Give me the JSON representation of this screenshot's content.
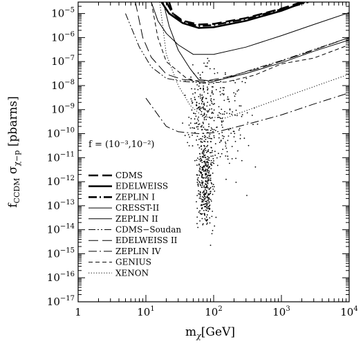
{
  "chart_data": {
    "type": "line",
    "xlabel": "m",
    "xlabel_sub": "χ",
    "xlabel_unit": "[GeV]",
    "ylabel": "f",
    "ylabel_sub": "CCDM",
    "ylabel_sigma": "σ",
    "ylabel_sigma_sub": "χ−p",
    "ylabel_unit": "[pbarns]",
    "annotation": "f = (10⁻³,10⁻²)",
    "x_scale": "log",
    "y_scale": "log",
    "xlim": [
      1,
      10000
    ],
    "ylim": [
      1e-17,
      3e-05
    ],
    "x_ticks": [
      {
        "base": "1",
        "exp": ""
      },
      {
        "base": "10",
        "exp": "1"
      },
      {
        "base": "10",
        "exp": "2"
      },
      {
        "base": "10",
        "exp": "3"
      },
      {
        "base": "10",
        "exp": "4"
      }
    ],
    "y_ticks": [
      {
        "v": 1e-05,
        "exp": "−5"
      },
      {
        "v": 1e-06,
        "exp": "−6"
      },
      {
        "v": 1e-07,
        "exp": "−7"
      },
      {
        "v": 1e-08,
        "exp": "−8"
      },
      {
        "v": 1e-09,
        "exp": "−9"
      },
      {
        "v": 1e-10,
        "exp": "−10"
      },
      {
        "v": 1e-11,
        "exp": "−11"
      },
      {
        "v": 1e-12,
        "exp": "−12"
      },
      {
        "v": 1e-13,
        "exp": "−13"
      },
      {
        "v": 1e-14,
        "exp": "−14"
      },
      {
        "v": 1e-15,
        "exp": "−15"
      },
      {
        "v": 1e-16,
        "exp": "−16"
      },
      {
        "v": 1e-17,
        "exp": "−17"
      }
    ],
    "legend_position": "bottom-left",
    "series": [
      {
        "name": "CDMS",
        "style": "longdash",
        "width": 3,
        "points": [
          [
            20,
            3e-05
          ],
          [
            25,
            1e-05
          ],
          [
            35,
            5e-06
          ],
          [
            60,
            3.5e-06
          ],
          [
            100,
            3.7e-06
          ],
          [
            300,
            6.5e-06
          ],
          [
            1000,
            1.6e-05
          ],
          [
            2000,
            3e-05
          ]
        ]
      },
      {
        "name": "EDELWEISS",
        "style": "solid",
        "width": 3,
        "points": [
          [
            17,
            3e-05
          ],
          [
            22,
            1e-05
          ],
          [
            35,
            4e-06
          ],
          [
            60,
            2.5e-06
          ],
          [
            100,
            2.7e-06
          ],
          [
            300,
            5e-06
          ],
          [
            1000,
            1.3e-05
          ],
          [
            2200,
            3e-05
          ]
        ]
      },
      {
        "name": "ZEPLIN I",
        "style": "dashdot",
        "width": 3,
        "points": [
          [
            22,
            3e-05
          ],
          [
            25,
            1e-05
          ],
          [
            35,
            4.5e-06
          ],
          [
            60,
            3e-06
          ],
          [
            100,
            3.3e-06
          ],
          [
            300,
            6e-06
          ],
          [
            1000,
            1.5e-05
          ],
          [
            2500,
            3e-05
          ]
        ]
      },
      {
        "name": "CRESST-II",
        "style": "solid",
        "width": 1,
        "points": [
          [
            12,
            3e-05
          ],
          [
            15,
            5e-06
          ],
          [
            20,
            1.5e-06
          ],
          [
            30,
            5e-07
          ],
          [
            50,
            2e-07
          ],
          [
            100,
            2e-07
          ],
          [
            300,
            4e-07
          ],
          [
            1000,
            1.2e-06
          ],
          [
            3000,
            3.5e-06
          ],
          [
            10000,
            1.1e-05
          ]
        ]
      },
      {
        "name": "ZEPLIN II",
        "style": "solid",
        "width": 1,
        "points": [
          [
            18,
            3e-05
          ],
          [
            22,
            3e-06
          ],
          [
            30,
            3e-07
          ],
          [
            45,
            5e-08
          ],
          [
            60,
            1.8e-08
          ],
          [
            100,
            1.5e-08
          ],
          [
            300,
            3.2e-08
          ],
          [
            1000,
            9e-08
          ],
          [
            3000,
            2.7e-07
          ],
          [
            10000,
            8e-07
          ]
        ]
      },
      {
        "name": "CDMS−Soudan",
        "style": "dashdotdot",
        "width": 1,
        "points": [
          [
            5,
            1e-05
          ],
          [
            8,
            4e-07
          ],
          [
            12,
            6e-08
          ],
          [
            20,
            2e-08
          ],
          [
            35,
            1.5e-08
          ],
          [
            70,
            1.3e-08
          ],
          [
            150,
            2e-08
          ],
          [
            400,
            5e-08
          ],
          [
            1000,
            1.1e-07
          ],
          [
            10000,
            1e-06
          ]
        ]
      },
      {
        "name": "EDELWEISS II",
        "style": "longdash",
        "width": 1,
        "points": [
          [
            7,
            3e-05
          ],
          [
            9,
            1e-06
          ],
          [
            12,
            1.5e-07
          ],
          [
            20,
            3e-08
          ],
          [
            35,
            1.8e-08
          ],
          [
            70,
            1.5e-08
          ],
          [
            150,
            2.2e-08
          ],
          [
            500,
            5.5e-08
          ],
          [
            2000,
            2e-07
          ],
          [
            10000,
            1e-06
          ]
        ]
      },
      {
        "name": "ZEPLIN IV",
        "style": "dashdot",
        "width": 1,
        "points": [
          [
            10,
            3e-09
          ],
          [
            20,
            2e-10
          ],
          [
            30,
            1.2e-10
          ],
          [
            60,
            1e-10
          ],
          [
            100,
            1.1e-10
          ],
          [
            300,
            2.4e-10
          ],
          [
            1000,
            6e-10
          ],
          [
            3000,
            1.7e-09
          ],
          [
            10000,
            5e-09
          ]
        ]
      },
      {
        "name": "GENIUS",
        "style": "shortdash",
        "width": 1,
        "points": [
          [
            12,
            3e-05
          ],
          [
            15,
            1e-06
          ],
          [
            20,
            1e-07
          ],
          [
            40,
            2e-08
          ],
          [
            70,
            1.3e-08
          ],
          [
            150,
            1.4e-08
          ],
          [
            400,
            2.7e-08
          ],
          [
            1000,
            8e-08
          ],
          [
            3000,
            1.4e-07
          ],
          [
            10000,
            5e-07
          ]
        ]
      },
      {
        "name": "XENON",
        "style": "dotted",
        "width": 1,
        "points": [
          [
            16,
            3e-05
          ],
          [
            20,
            2e-07
          ],
          [
            30,
            1e-08
          ],
          [
            45,
            1.5e-09
          ],
          [
            70,
            5e-10
          ],
          [
            150,
            4.5e-10
          ],
          [
            400,
            1.2e-09
          ],
          [
            1000,
            3e-09
          ],
          [
            3000,
            9e-09
          ],
          [
            10000,
            3e-08
          ]
        ]
      }
    ]
  }
}
